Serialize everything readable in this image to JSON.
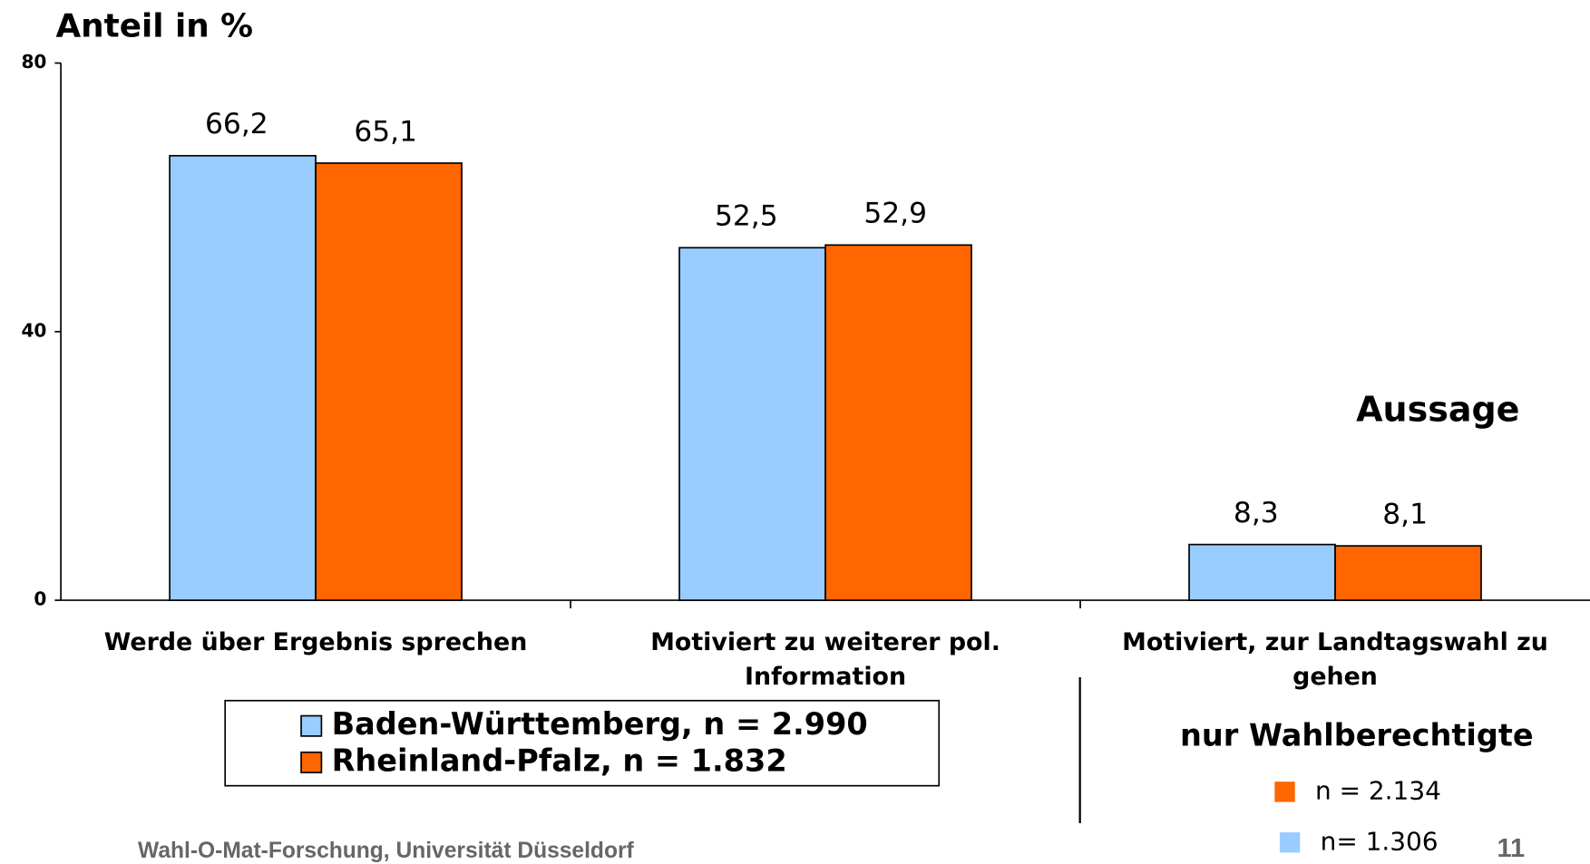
{
  "chart_data": {
    "type": "bar",
    "title": "Anteil in %",
    "categories": [
      "Werde über Ergebnis sprechen",
      "Motiviert zu weiterer pol. Information",
      "Motiviert, zur Landtagswahl zu gehen"
    ],
    "series": [
      {
        "name": "Baden-Württemberg, n = 2.990",
        "color": "#99ccff",
        "values": [
          66.2,
          52.5,
          8.3
        ],
        "value_labels": [
          "66,2",
          "52,5",
          "8,3"
        ]
      },
      {
        "name": "Rheinland-Pfalz, n = 1.832",
        "color": "#ff6600",
        "values": [
          65.1,
          52.9,
          8.1
        ],
        "value_labels": [
          "65,1",
          "52,9",
          "8,1"
        ]
      }
    ],
    "ylim": [
      0,
      80
    ],
    "yticks": [
      0,
      40,
      80
    ],
    "annotations": [
      "Aussage",
      "nur Wahlberechtigte"
    ],
    "notes": [
      {
        "text": "n = 2.134",
        "color": "#ff6600"
      },
      {
        "text": "n= 1.306",
        "color": "#99ccff"
      }
    ],
    "footer": {
      "source": "Wahl-O-Mat-Forschung, Universität Düsseldorf",
      "page": "11"
    }
  }
}
